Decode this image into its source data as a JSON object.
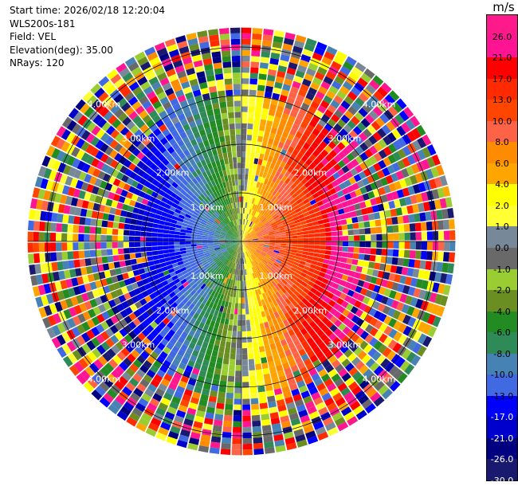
{
  "info": {
    "start_time": "Start time: 2026/02/18 12:20:04",
    "station": "WLS200s-181",
    "field": "Field: VEL",
    "elevation": "Elevation(deg): 35.00",
    "nrays": "NRays: 120"
  },
  "colorbar": {
    "unit": "m/s",
    "levels": [
      {
        "label": "26.0",
        "color": "#ff1a8c"
      },
      {
        "label": "21.0",
        "color": "#ff1493"
      },
      {
        "label": "17.0",
        "color": "#ff0000"
      },
      {
        "label": "13.0",
        "color": "#ff2a00"
      },
      {
        "label": "10.0",
        "color": "#ff4500"
      },
      {
        "label": "8.0",
        "color": "#ff6347"
      },
      {
        "label": "6.0",
        "color": "#ff8c00"
      },
      {
        "label": "4.0",
        "color": "#ffa500"
      },
      {
        "label": "2.0",
        "color": "#ffff00"
      },
      {
        "label": "1.0",
        "color": "#ffff33"
      },
      {
        "label": "0.0",
        "color": "#778899"
      },
      {
        "label": "-1.0",
        "color": "#696969"
      },
      {
        "label": "-2.0",
        "color": "#9acd32"
      },
      {
        "label": "-4.0",
        "color": "#6b8e23"
      },
      {
        "label": "-6.0",
        "color": "#228b22"
      },
      {
        "label": "-8.0",
        "color": "#2e8b57"
      },
      {
        "label": "-10.0",
        "color": "#4682b4"
      },
      {
        "label": "-13.0",
        "color": "#4169e1"
      },
      {
        "label": "-17.0",
        "color": "#0000ff"
      },
      {
        "label": "-21.0",
        "color": "#0000cd"
      },
      {
        "label": "-26.0",
        "color": "#000080"
      },
      {
        "label": "-30.0",
        "color": "#191970"
      }
    ]
  },
  "chart_data": {
    "type": "heatmap",
    "plot": "PPI radar display",
    "field": "VEL",
    "units": "m/s",
    "nrays": 120,
    "range_rings_km": [
      1.0,
      2.0,
      3.0,
      4.0
    ],
    "ring_labels": [
      "1.00km",
      "2.00km",
      "3.00km",
      "4.00km"
    ],
    "max_range_km": 4.4,
    "value_range": [
      -30.0,
      26.0
    ],
    "pattern": "velocity dipole: positive (toward red/magenta) east half, negative (blue) west half, noisy far range",
    "grid": true
  }
}
